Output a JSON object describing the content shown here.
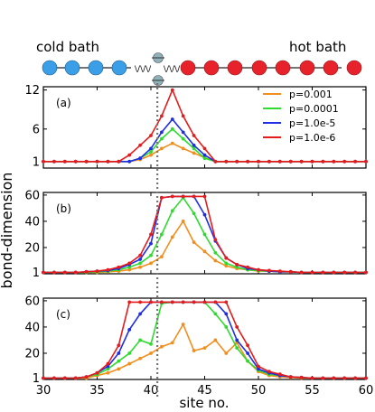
{
  "header": {
    "left_label": "cold bath",
    "right_label": "hot bath",
    "spring_label": "\\/\\/\\/",
    "colors": {
      "cold": "#3a9fe6",
      "hot": "#e8222b",
      "system": "#8fb3b8"
    }
  },
  "ylabel": "bond-dimension",
  "xlabel": "site no.",
  "chart_data": [
    {
      "type": "line",
      "panel_label": "(a)",
      "xlim": [
        30,
        60
      ],
      "ylim": [
        0,
        12.5
      ],
      "yticks": [
        1,
        6,
        12
      ],
      "grid": false,
      "legend_placement": "top-right",
      "series": [
        {
          "name": "p=0.001",
          "color": "#f28e1c",
          "x": [
            30,
            31,
            32,
            33,
            34,
            35,
            36,
            37,
            38,
            39,
            40,
            41,
            42,
            43,
            44,
            45,
            46,
            47,
            48,
            49,
            50,
            51,
            52,
            53,
            54,
            55,
            56,
            57,
            58,
            59,
            60
          ],
          "values": [
            1,
            1,
            1,
            1,
            1,
            1,
            1,
            1,
            1,
            1.3,
            2,
            3,
            3.8,
            3,
            2.3,
            1.6,
            1,
            1,
            1,
            1,
            1,
            1,
            1,
            1,
            1,
            1,
            1,
            1,
            1,
            1,
            1
          ]
        },
        {
          "name": "p=0.0001",
          "color": "#2edb2e",
          "x": [
            30,
            31,
            32,
            33,
            34,
            35,
            36,
            37,
            38,
            39,
            40,
            41,
            42,
            43,
            44,
            45,
            46,
            47,
            48,
            49,
            50,
            51,
            52,
            53,
            54,
            55,
            56,
            57,
            58,
            59,
            60
          ],
          "values": [
            1,
            1,
            1,
            1,
            1,
            1,
            1,
            1,
            1,
            1.5,
            2.5,
            4.5,
            6,
            4.5,
            3,
            1.5,
            1,
            1,
            1,
            1,
            1,
            1,
            1,
            1,
            1,
            1,
            1,
            1,
            1,
            1,
            1
          ]
        },
        {
          "name": "p=1.0e-5",
          "color": "#1f2ee6",
          "x": [
            30,
            31,
            32,
            33,
            34,
            35,
            36,
            37,
            38,
            39,
            40,
            41,
            42,
            43,
            44,
            45,
            46,
            47,
            48,
            49,
            50,
            51,
            52,
            53,
            54,
            55,
            56,
            57,
            58,
            59,
            60
          ],
          "values": [
            1,
            1,
            1,
            1,
            1,
            1,
            1,
            1,
            1,
            1.5,
            3,
            5.5,
            7.5,
            5.5,
            3.5,
            2,
            1,
            1,
            1,
            1,
            1,
            1,
            1,
            1,
            1,
            1,
            1,
            1,
            1,
            1,
            1
          ]
        },
        {
          "name": "p=1.0e-6",
          "color": "#e41c1c",
          "x": [
            30,
            31,
            32,
            33,
            34,
            35,
            36,
            37,
            38,
            39,
            40,
            41,
            42,
            43,
            44,
            45,
            46,
            47,
            48,
            49,
            50,
            51,
            52,
            53,
            54,
            55,
            56,
            57,
            58,
            59,
            60
          ],
          "values": [
            1,
            1,
            1,
            1,
            1,
            1,
            1,
            1,
            2,
            3.5,
            5,
            8,
            12,
            8,
            5,
            3,
            1,
            1,
            1,
            1,
            1,
            1,
            1,
            1,
            1,
            1,
            1,
            1,
            1,
            1,
            1
          ]
        }
      ]
    },
    {
      "type": "line",
      "panel_label": "(b)",
      "xlim": [
        30,
        60
      ],
      "ylim": [
        0,
        62
      ],
      "yticks": [
        1,
        20,
        40,
        60
      ],
      "grid": false,
      "series": [
        {
          "name": "p=0.001",
          "color": "#f28e1c",
          "x": [
            30,
            31,
            32,
            33,
            34,
            35,
            36,
            37,
            38,
            39,
            40,
            41,
            42,
            43,
            44,
            45,
            46,
            47,
            48,
            49,
            50,
            51,
            52,
            53,
            54,
            55,
            56,
            57,
            58,
            59,
            60
          ],
          "values": [
            1,
            1,
            1,
            1,
            1,
            1,
            1.5,
            2,
            3,
            5,
            8,
            13,
            28,
            40,
            24,
            17,
            10,
            6,
            4,
            3,
            2,
            2,
            1.5,
            1.5,
            1,
            1,
            1,
            1,
            1,
            1,
            1
          ]
        },
        {
          "name": "p=0.0001",
          "color": "#2edb2e",
          "x": [
            30,
            31,
            32,
            33,
            34,
            35,
            36,
            37,
            38,
            39,
            40,
            41,
            42,
            43,
            44,
            45,
            46,
            47,
            48,
            49,
            50,
            51,
            52,
            53,
            54,
            55,
            56,
            57,
            58,
            59,
            60
          ],
          "values": [
            1,
            1,
            1,
            1,
            1,
            1.5,
            2,
            3,
            5,
            8,
            14,
            30,
            48,
            58,
            46,
            30,
            16,
            8,
            5,
            3,
            2.5,
            2,
            1.5,
            1.5,
            1,
            1,
            1,
            1,
            1,
            1,
            1
          ]
        },
        {
          "name": "p=1.0e-5",
          "color": "#1f2ee6",
          "x": [
            30,
            31,
            32,
            33,
            34,
            35,
            36,
            37,
            38,
            39,
            40,
            41,
            42,
            43,
            44,
            45,
            46,
            47,
            48,
            49,
            50,
            51,
            52,
            53,
            54,
            55,
            56,
            57,
            58,
            59,
            60
          ],
          "values": [
            1,
            1,
            1,
            1,
            1.5,
            2,
            2.5,
            4,
            7,
            11,
            23,
            58,
            59,
            59,
            59,
            45,
            25,
            12,
            7,
            4,
            3,
            2,
            1.5,
            1.5,
            1,
            1,
            1,
            1,
            1,
            1,
            1
          ]
        },
        {
          "name": "p=1.0e-6",
          "color": "#e41c1c",
          "x": [
            30,
            31,
            32,
            33,
            34,
            35,
            36,
            37,
            38,
            39,
            40,
            41,
            42,
            43,
            44,
            45,
            46,
            47,
            48,
            49,
            50,
            51,
            52,
            53,
            54,
            55,
            56,
            57,
            58,
            59,
            60
          ],
          "values": [
            1,
            1,
            1,
            1,
            1.5,
            2,
            3,
            5,
            8,
            14,
            30,
            58,
            59,
            59,
            59,
            59,
            26,
            12,
            7,
            5,
            3,
            2.5,
            2,
            1.5,
            1,
            1,
            1,
            1,
            1,
            1,
            1
          ]
        }
      ]
    },
    {
      "type": "line",
      "panel_label": "(c)",
      "xlim": [
        30,
        60
      ],
      "ylim": [
        0,
        62
      ],
      "yticks": [
        1,
        20,
        40,
        60
      ],
      "grid": false,
      "series": [
        {
          "name": "p=0.001",
          "color": "#f28e1c",
          "x": [
            30,
            31,
            32,
            33,
            34,
            35,
            36,
            37,
            38,
            39,
            40,
            41,
            42,
            43,
            44,
            45,
            46,
            47,
            48,
            49,
            50,
            51,
            52,
            53,
            54,
            55,
            56,
            57,
            58,
            59,
            60
          ],
          "values": [
            1,
            1,
            1,
            1,
            1,
            3,
            5,
            8,
            12,
            16,
            20,
            25,
            28,
            42,
            22,
            24,
            30,
            20,
            28,
            14,
            6,
            3,
            2,
            1.5,
            1,
            1,
            1,
            1,
            1,
            1,
            1
          ]
        },
        {
          "name": "p=0.0001",
          "color": "#2edb2e",
          "x": [
            30,
            31,
            32,
            33,
            34,
            35,
            36,
            37,
            38,
            39,
            40,
            41,
            42,
            43,
            44,
            45,
            46,
            47,
            48,
            49,
            50,
            51,
            52,
            53,
            54,
            55,
            56,
            57,
            58,
            59,
            60
          ],
          "values": [
            1,
            1,
            1,
            1,
            2,
            4,
            8,
            14,
            20,
            30,
            27,
            58,
            59,
            59,
            59,
            59,
            50,
            40,
            24,
            14,
            7,
            4,
            3,
            2,
            1.5,
            1,
            1,
            1,
            1,
            1,
            1
          ]
        },
        {
          "name": "p=1.0e-5",
          "color": "#1f2ee6",
          "x": [
            30,
            31,
            32,
            33,
            34,
            35,
            36,
            37,
            38,
            39,
            40,
            41,
            42,
            43,
            44,
            45,
            46,
            47,
            48,
            49,
            50,
            51,
            52,
            53,
            54,
            55,
            56,
            57,
            58,
            59,
            60
          ],
          "values": [
            1,
            1,
            1,
            1,
            2,
            5,
            10,
            20,
            38,
            50,
            59,
            59,
            59,
            59,
            59,
            59,
            59,
            50,
            30,
            20,
            8,
            5,
            3,
            2,
            1.5,
            1,
            1,
            1,
            1,
            1,
            1
          ]
        },
        {
          "name": "p=1.0e-6",
          "color": "#e41c1c",
          "x": [
            30,
            31,
            32,
            33,
            34,
            35,
            36,
            37,
            38,
            39,
            40,
            41,
            42,
            43,
            44,
            45,
            46,
            47,
            48,
            49,
            50,
            51,
            52,
            53,
            54,
            55,
            56,
            57,
            58,
            59,
            60
          ],
          "values": [
            1,
            1,
            1,
            1,
            2,
            5,
            12,
            26,
            59,
            59,
            59,
            59,
            59,
            59,
            59,
            59,
            59,
            59,
            40,
            26,
            10,
            6,
            4,
            2,
            1.5,
            1,
            1,
            1,
            1,
            1,
            1
          ]
        }
      ]
    }
  ],
  "xticks": [
    30,
    35,
    40,
    45,
    50,
    55,
    60
  ],
  "marker_x": 40.6
}
